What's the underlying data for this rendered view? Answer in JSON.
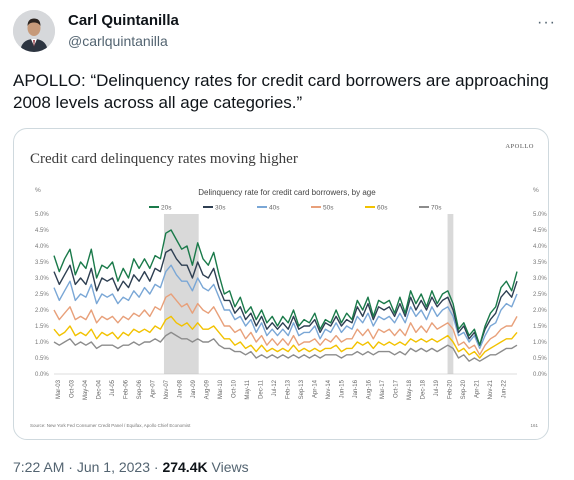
{
  "tweet": {
    "display_name": "Carl Quintanilla",
    "handle": "@carlquintanilla",
    "more_icon": "more-horizontal-icon",
    "text": "APOLLO: “Delinquency rates for credit card borrowers are approaching 2008 levels across all age categories.”",
    "time": "7:22 AM",
    "date": "Jun 1, 2023",
    "separator": "·",
    "views_count": "274.4K",
    "views_label": "Views"
  },
  "image": {
    "brand": "APOLLO",
    "source": "Source: New York Fed Consumer Credit Panel / Equifax, Apollo Chief Economist",
    "page_num": "161"
  },
  "chart_data": {
    "type": "line",
    "title": "Credit card delinquency rates moving higher",
    "subtitle": "Delinquency rate for credit card borrowers, by age",
    "ylabel_left": "%",
    "ylabel_right": "%",
    "ylim": [
      0,
      5
    ],
    "yticks": [
      "0.0%",
      "0.5%",
      "1.0%",
      "1.5%",
      "2.0%",
      "2.5%",
      "3.0%",
      "3.5%",
      "4.0%",
      "4.5%",
      "5.0%"
    ],
    "xticks": [
      "Mar-03",
      "Oct-03",
      "May-04",
      "Dec-04",
      "Jul-05",
      "Feb-06",
      "Sep-06",
      "Apr-07",
      "Nov-07",
      "Jun-08",
      "Jan-09",
      "Aug-09",
      "Mar-10",
      "Oct-10",
      "May-11",
      "Dec-11",
      "Jul-12",
      "Feb-13",
      "Sep-13",
      "Apr-14",
      "Nov-14",
      "Jun-15",
      "Jan-16",
      "Aug-16",
      "Mar-17",
      "Oct-17",
      "May-18",
      "Dec-18",
      "Jul-19",
      "Feb-20",
      "Sep-20",
      "Apr-21",
      "Nov-21",
      "Jun-22"
    ],
    "x_start": "2003-Q1",
    "x_end": "2023-Q1",
    "recessions": [
      [
        "2007-Q4",
        "2009-Q2"
      ],
      [
        "2020-Q1",
        "2020-Q2"
      ]
    ],
    "legend_position": "top-center",
    "grid": false,
    "series": [
      {
        "name": "20s",
        "color": "#1a7a4a",
        "values": [
          3.7,
          3.2,
          3.6,
          3.9,
          3.1,
          3.5,
          3.3,
          3.9,
          3.0,
          3.4,
          3.3,
          3.5,
          2.9,
          3.3,
          3.0,
          3.6,
          3.3,
          3.6,
          3.3,
          3.7,
          3.6,
          4.4,
          4.5,
          4.2,
          3.9,
          4.0,
          3.4,
          4.1,
          3.6,
          3.4,
          3.8,
          3.1,
          2.5,
          2.6,
          2.1,
          2.4,
          1.9,
          2.1,
          1.7,
          2.0,
          1.6,
          1.8,
          1.5,
          1.8,
          1.6,
          2.0,
          1.5,
          1.7,
          1.6,
          1.9,
          1.4,
          1.7,
          1.6,
          2.0,
          1.6,
          1.9,
          1.7,
          2.3,
          2.0,
          2.4,
          1.8,
          2.3,
          2.2,
          2.3,
          1.9,
          2.4,
          1.9,
          2.6,
          2.2,
          2.5,
          2.1,
          2.6,
          2.2,
          2.5,
          2.6,
          2.2,
          1.4,
          1.6,
          1.2,
          1.4,
          0.9,
          1.5,
          1.9,
          2.1,
          2.7,
          2.9,
          2.6,
          3.2
        ]
      },
      {
        "name": "30s",
        "color": "#2e3f52",
        "values": [
          3.2,
          2.8,
          3.1,
          3.4,
          2.8,
          3.0,
          2.8,
          3.3,
          2.6,
          3.0,
          2.9,
          3.0,
          2.6,
          2.9,
          2.7,
          3.1,
          2.9,
          3.2,
          2.9,
          3.3,
          3.2,
          3.8,
          3.9,
          3.6,
          3.4,
          3.4,
          3.0,
          3.5,
          3.1,
          3.0,
          3.3,
          2.7,
          2.3,
          2.3,
          1.9,
          2.1,
          1.7,
          1.9,
          1.5,
          1.8,
          1.4,
          1.6,
          1.4,
          1.6,
          1.4,
          1.8,
          1.4,
          1.5,
          1.5,
          1.7,
          1.3,
          1.6,
          1.5,
          1.8,
          1.5,
          1.7,
          1.6,
          2.1,
          1.8,
          2.2,
          1.7,
          2.1,
          2.0,
          2.1,
          1.8,
          2.2,
          1.8,
          2.4,
          2.0,
          2.3,
          2.0,
          2.4,
          2.1,
          2.3,
          2.4,
          2.0,
          1.3,
          1.5,
          1.1,
          1.3,
          0.9,
          1.4,
          1.7,
          1.9,
          2.4,
          2.6,
          2.4,
          2.9
        ]
      },
      {
        "name": "40s",
        "color": "#7aa7d6",
        "values": [
          2.7,
          2.3,
          2.6,
          2.9,
          2.3,
          2.5,
          2.4,
          2.8,
          2.2,
          2.5,
          2.4,
          2.5,
          2.2,
          2.4,
          2.3,
          2.6,
          2.4,
          2.7,
          2.5,
          2.8,
          2.7,
          3.2,
          3.4,
          3.1,
          2.9,
          2.9,
          2.6,
          3.0,
          2.7,
          2.6,
          2.8,
          2.4,
          2.0,
          2.0,
          1.7,
          1.8,
          1.5,
          1.7,
          1.3,
          1.6,
          1.2,
          1.4,
          1.2,
          1.4,
          1.2,
          1.6,
          1.2,
          1.3,
          1.3,
          1.5,
          1.1,
          1.4,
          1.3,
          1.6,
          1.3,
          1.5,
          1.4,
          1.8,
          1.6,
          1.9,
          1.5,
          1.8,
          1.7,
          1.8,
          1.6,
          1.9,
          1.6,
          2.1,
          1.8,
          2.0,
          1.7,
          2.1,
          1.8,
          2.0,
          2.1,
          1.8,
          1.2,
          1.3,
          1.0,
          1.2,
          0.8,
          1.2,
          1.5,
          1.6,
          2.0,
          2.2,
          2.1,
          2.5
        ]
      },
      {
        "name": "50s",
        "color": "#e8a07a",
        "values": [
          2.0,
          1.7,
          1.9,
          2.1,
          1.7,
          1.8,
          1.7,
          2.0,
          1.6,
          1.8,
          1.7,
          1.8,
          1.6,
          1.8,
          1.7,
          1.9,
          1.8,
          2.0,
          1.8,
          2.1,
          2.0,
          2.4,
          2.5,
          2.3,
          2.1,
          2.2,
          1.9,
          2.2,
          2.0,
          1.9,
          2.1,
          1.8,
          1.5,
          1.5,
          1.3,
          1.4,
          1.1,
          1.3,
          1.0,
          1.2,
          0.9,
          1.1,
          0.9,
          1.1,
          0.9,
          1.2,
          0.9,
          1.0,
          1.0,
          1.1,
          0.9,
          1.1,
          1.0,
          1.2,
          1.0,
          1.1,
          1.1,
          1.4,
          1.2,
          1.4,
          1.1,
          1.4,
          1.3,
          1.4,
          1.2,
          1.4,
          1.2,
          1.6,
          1.3,
          1.5,
          1.3,
          1.6,
          1.4,
          1.5,
          1.6,
          1.4,
          0.9,
          1.0,
          0.8,
          0.9,
          0.6,
          0.9,
          1.1,
          1.2,
          1.4,
          1.5,
          1.5,
          1.8
        ]
      },
      {
        "name": "60s",
        "color": "#f2c200",
        "values": [
          1.4,
          1.2,
          1.3,
          1.5,
          1.2,
          1.3,
          1.2,
          1.4,
          1.1,
          1.3,
          1.2,
          1.3,
          1.1,
          1.3,
          1.2,
          1.4,
          1.3,
          1.4,
          1.3,
          1.5,
          1.4,
          1.7,
          1.8,
          1.6,
          1.5,
          1.6,
          1.4,
          1.6,
          1.4,
          1.4,
          1.5,
          1.3,
          1.1,
          1.1,
          0.9,
          1.0,
          0.8,
          0.9,
          0.7,
          0.9,
          0.7,
          0.8,
          0.7,
          0.8,
          0.7,
          0.9,
          0.7,
          0.8,
          0.7,
          0.8,
          0.7,
          0.8,
          0.8,
          0.9,
          0.7,
          0.8,
          0.8,
          1.0,
          0.9,
          1.0,
          0.8,
          1.0,
          0.9,
          1.0,
          0.9,
          1.0,
          0.9,
          1.1,
          1.0,
          1.1,
          1.0,
          1.1,
          1.0,
          1.1,
          1.2,
          1.0,
          0.7,
          0.8,
          0.6,
          0.7,
          0.5,
          0.7,
          0.8,
          0.9,
          1.0,
          1.1,
          1.1,
          1.3
        ]
      },
      {
        "name": "70s",
        "color": "#8c8c8c",
        "values": [
          1.0,
          0.9,
          1.0,
          1.1,
          0.9,
          1.0,
          0.9,
          1.0,
          0.8,
          0.9,
          0.9,
          0.9,
          0.8,
          0.9,
          0.9,
          1.0,
          0.9,
          1.0,
          1.0,
          1.1,
          1.0,
          1.2,
          1.3,
          1.2,
          1.1,
          1.1,
          1.0,
          1.1,
          1.0,
          1.0,
          1.1,
          0.9,
          0.8,
          0.8,
          0.7,
          0.7,
          0.6,
          0.7,
          0.5,
          0.6,
          0.5,
          0.6,
          0.5,
          0.6,
          0.5,
          0.6,
          0.5,
          0.6,
          0.5,
          0.6,
          0.5,
          0.6,
          0.6,
          0.6,
          0.5,
          0.6,
          0.6,
          0.7,
          0.6,
          0.7,
          0.6,
          0.7,
          0.7,
          0.7,
          0.6,
          0.7,
          0.6,
          0.8,
          0.7,
          0.8,
          0.7,
          0.8,
          0.7,
          0.8,
          0.9,
          0.8,
          0.5,
          0.6,
          0.4,
          0.5,
          0.4,
          0.5,
          0.6,
          0.6,
          0.7,
          0.8,
          0.8,
          0.9
        ]
      }
    ]
  }
}
